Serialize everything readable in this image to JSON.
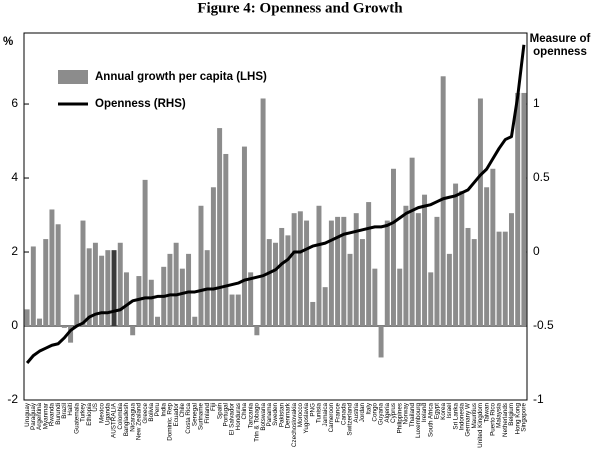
{
  "chart_data": {
    "type": "bar",
    "title": "Figure 4: Openness and Growth",
    "ylabel": "%",
    "y2label": [
      "Measure of",
      "openness"
    ],
    "categories": [
      "Uruguay",
      "Paraguay",
      "Argentina",
      "Myanmar",
      "Rwanda",
      "Burundi",
      "Brazil",
      "Haiti",
      "Guatemala",
      "Turkey",
      "Ethiopia",
      "US",
      "Mexico",
      "Uganda",
      "AUSTRALIA",
      "Colombia",
      "Bangladesh",
      "Nicaragua",
      "New Zealand",
      "Greece",
      "Bolivia",
      "Peru",
      "India",
      "Dominic. Rep",
      "Ecuador",
      "Chile",
      "Costa Rica",
      "Senegal",
      "Suriname",
      "Finland",
      "Fiji",
      "Spain",
      "Portugal",
      "El Salvador",
      "Honduras",
      "China",
      "Tanzania",
      "Trin & Tobago",
      "Botswana",
      "Panama",
      "Sweden",
      "Pakistan",
      "Denmark",
      "Czechoslovakia",
      "Morocco",
      "Yugoslavia",
      "PNG",
      "Tunisia",
      "Jamaica",
      "Cameroon",
      "France",
      "Canada",
      "Switzerland",
      "Austria",
      "Jordan",
      "Italy",
      "Congo",
      "Guyana",
      "Algeria",
      "Cyprus",
      "Philippines",
      "Norway",
      "Thailand",
      "Luxembourg",
      "Ireland",
      "South Africa",
      "Egypt",
      "Korea",
      "Israel",
      "Sri Lanka",
      "Indonesia",
      "Germany W",
      "Mauritius",
      "United Kingdom",
      "Taiwan",
      "Puerto Rico",
      "Malaysia",
      "Netherlands",
      "Belgium",
      "Hong Kong",
      "Singapore"
    ],
    "series": [
      {
        "name": "Annual growth per capita (LHS)",
        "type": "bar",
        "axis": "y",
        "color": "#8c8c8c",
        "highlight_index": 14,
        "highlight_color": "#3a3a3a",
        "values": [
          0.45,
          2.15,
          0.2,
          2.35,
          3.15,
          2.75,
          -0.05,
          -0.45,
          0.85,
          2.85,
          2.1,
          2.25,
          1.9,
          2.05,
          2.05,
          2.25,
          1.45,
          -0.25,
          1.35,
          3.95,
          1.25,
          0.25,
          1.6,
          1.95,
          2.25,
          1.55,
          1.95,
          0.25,
          3.25,
          2.05,
          3.75,
          5.35,
          4.65,
          0.85,
          0.85,
          4.85,
          1.45,
          -0.25,
          6.15,
          2.35,
          2.25,
          2.65,
          2.45,
          3.05,
          3.1,
          2.85,
          0.65,
          3.25,
          1.05,
          2.85,
          2.95,
          2.95,
          1.95,
          3.05,
          2.35,
          3.35,
          1.55,
          -0.85,
          2.85,
          4.25,
          1.55,
          3.25,
          4.55,
          3.05,
          3.55,
          1.45,
          2.95,
          6.75,
          1.95,
          3.85,
          3.65,
          2.65,
          2.35,
          6.15,
          3.75,
          4.25,
          2.55,
          2.55,
          3.05,
          6.3,
          6.3
        ]
      },
      {
        "name": "Openness (RHS)",
        "type": "line",
        "axis": "y2",
        "color": "#000000",
        "values": [
          -0.75,
          -0.7,
          -0.67,
          -0.65,
          -0.63,
          -0.62,
          -0.58,
          -0.53,
          -0.5,
          -0.48,
          -0.44,
          -0.42,
          -0.41,
          -0.41,
          -0.4,
          -0.39,
          -0.36,
          -0.33,
          -0.32,
          -0.31,
          -0.31,
          -0.3,
          -0.3,
          -0.29,
          -0.29,
          -0.28,
          -0.27,
          -0.27,
          -0.26,
          -0.25,
          -0.25,
          -0.24,
          -0.23,
          -0.22,
          -0.21,
          -0.19,
          -0.18,
          -0.17,
          -0.16,
          -0.14,
          -0.12,
          -0.08,
          -0.05,
          0,
          0,
          0.02,
          0.04,
          0.05,
          0.06,
          0.08,
          0.1,
          0.12,
          0.13,
          0.14,
          0.15,
          0.16,
          0.17,
          0.17,
          0.18,
          0.2,
          0.23,
          0.26,
          0.28,
          0.3,
          0.31,
          0.32,
          0.34,
          0.36,
          0.37,
          0.38,
          0.4,
          0.42,
          0.47,
          0.52,
          0.56,
          0.63,
          0.7,
          0.76,
          0.78,
          1.05,
          1.4
        ]
      }
    ],
    "ylim": [
      -2,
      7.92
    ],
    "yticks": [
      -2,
      0,
      2,
      4,
      6
    ],
    "y2lim": [
      -1,
      1.48
    ],
    "y2ticks": [
      -1,
      -0.5,
      0,
      0.5,
      1
    ],
    "grid": false,
    "legend": "upper left"
  }
}
